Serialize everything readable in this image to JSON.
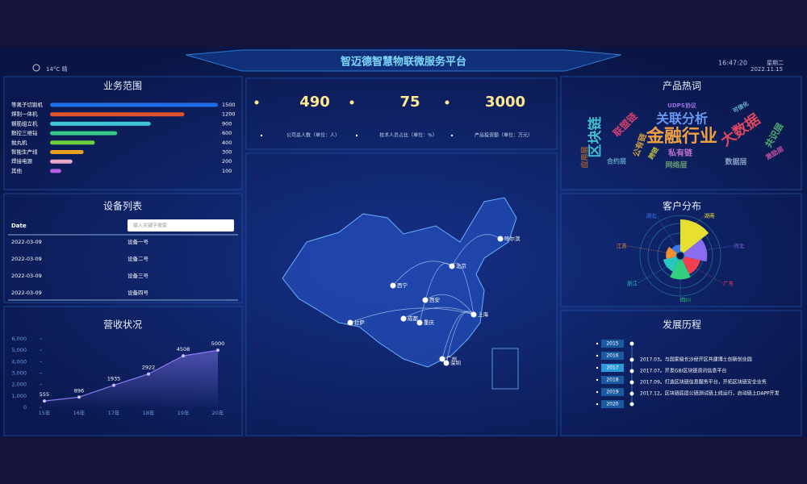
{
  "header": {
    "weather": "14°C 晴",
    "title": "智迈德智慧物联微服务平台",
    "time": "16:47:20",
    "weekday": "星期二",
    "date": "2022.11.15"
  },
  "panels": {
    "business": "业务范围",
    "devices": "设备列表",
    "revenue": "营收状况",
    "hot_words": "产品热词",
    "customers": "客户分布",
    "history": "发展历程"
  },
  "stats": [
    {
      "value": 490,
      "label": "公司总人数（单位：人）"
    },
    {
      "value": 75,
      "label": "技术人员占比（单位：%）"
    },
    {
      "value": 3000,
      "label": "产品投资额（单位：万元）"
    }
  ],
  "device_table": {
    "header": "Date",
    "search_placeholder": "输入关键字搜索",
    "rows": [
      [
        "2022-03-09",
        "设备一号"
      ],
      [
        "2022-03-09",
        "设备二号"
      ],
      [
        "2022-03-09",
        "设备三号"
      ],
      [
        "2022-03-09",
        "设备四号"
      ]
    ]
  },
  "word_cloud": [
    "金融行业",
    "关联分析",
    "大数据",
    "区块链",
    "私有链",
    "数据层",
    "网络层",
    "联盟链",
    "共识层",
    "公有链",
    "应用层",
    "激励层",
    "合约层",
    "UDPS协议",
    "可信化",
    "跨链"
  ],
  "map": {
    "cities": [
      "哈尔滨",
      "北京",
      "西宁",
      "西安",
      "成都",
      "重庆",
      "上海",
      "拉萨",
      "广州",
      "深圳"
    ]
  },
  "timeline": {
    "years": [
      "2015",
      "2016",
      "2017",
      "2018",
      "2019",
      "2020"
    ],
    "events": [
      "2017.03。与国家级长沙经开区共建博士创新创业园",
      "2017.07。开发GBI区块链资讯信息平台",
      "2017.09。打造区块链信息服务平台，开拓区块链安全业务",
      "2017.12。区块链底层公链测试链上线运行，启动链上DAPP开发"
    ]
  },
  "chart_data": [
    {
      "type": "bar",
      "orientation": "horizontal",
      "categories": [
        "等离子切割机",
        "焊割一体机",
        "钢筋组立机",
        "数控三维钻",
        "抛丸机",
        "智能生产线",
        "焊接电源",
        "其他"
      ],
      "values": [
        1500,
        1200,
        900,
        600,
        400,
        300,
        200,
        100
      ],
      "colors": [
        "#1f6fe8",
        "#e0522a",
        "#3ec6d8",
        "#36c98a",
        "#6ad040",
        "#e8a020",
        "#e8a8c8",
        "#b060e0"
      ],
      "xlim": [
        0,
        1500
      ]
    },
    {
      "type": "line",
      "categories": [
        "15年",
        "16年",
        "17年",
        "18年",
        "19年",
        "20年"
      ],
      "values": [
        555,
        896,
        1935,
        2922,
        4508,
        5000
      ],
      "color": "#8a7cf5",
      "area": true,
      "ylim": [
        0,
        6000
      ],
      "yticks": [
        0,
        {
          "value": 1000,
          "label": "1,000"
        },
        {
          "value": 2000,
          "label": "2,000"
        },
        {
          "value": 3000,
          "label": "3,000"
        },
        {
          "value": 4000,
          "label": "4,000"
        },
        {
          "value": 5000,
          "label": "5,000"
        },
        {
          "value": 6000,
          "label": "6,000"
        }
      ]
    },
    {
      "type": "rose",
      "categories": [
        "湖南",
        "河北",
        "广东",
        "四川",
        "浙江",
        "江苏",
        "湖北"
      ],
      "values": [
        10,
        7,
        5,
        6,
        4,
        3,
        2
      ],
      "colors": [
        "#e8e030",
        "#8a6cf0",
        "#f04050",
        "#30d080",
        "#28c8c0",
        "#f09030",
        "#3a7af0"
      ],
      "rlim": [
        0,
        10
      ]
    }
  ]
}
